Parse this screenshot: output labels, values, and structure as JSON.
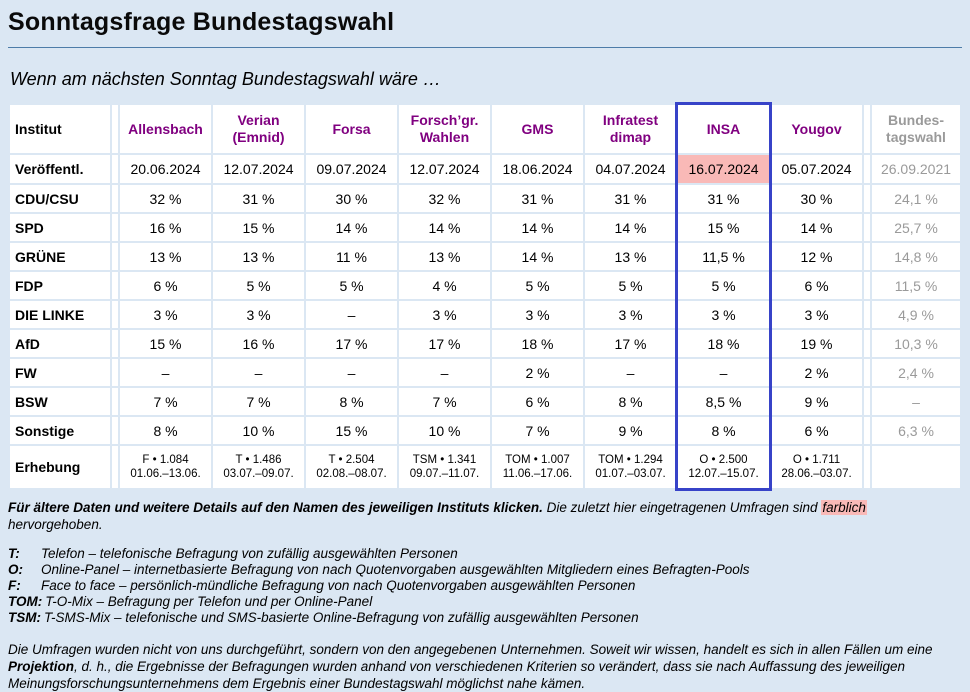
{
  "page": {
    "title": "Sonntagsfrage Bundestagswahl",
    "subtitle": "Wenn am nächsten Sonntag Bundestagswahl wäre …"
  },
  "colors": {
    "background": "#dbe7f3",
    "rule": "#4d7ca8",
    "institute_link": "#800080",
    "highlight_pink": "#f9b9b7",
    "insa_frame_blue": "#3743c8",
    "muted_gray": "#9a9a9a"
  },
  "table": {
    "corner_label": "Institut",
    "published_label": "Veröffentl.",
    "survey_label": "Erhebung",
    "parties": [
      "CDU/CSU",
      "SPD",
      "GRÜNE",
      "FDP",
      "DIE LINKE",
      "AfD",
      "FW",
      "BSW",
      "Sonstige"
    ],
    "columns": [
      {
        "name": "Allensbach",
        "link": true,
        "published": "20.06.2024",
        "values": [
          "32 %",
          "16 %",
          "13 %",
          "6 %",
          "3 %",
          "15 %",
          "–",
          "7 %",
          "8 %"
        ],
        "survey": "F • 1.084",
        "period": "01.06.–13.06."
      },
      {
        "name": "Verian\n(Emnid)",
        "link": true,
        "published": "12.07.2024",
        "values": [
          "31 %",
          "15 %",
          "13 %",
          "5 %",
          "3 %",
          "16 %",
          "–",
          "7 %",
          "10 %"
        ],
        "survey": "T • 1.486",
        "period": "03.07.–09.07."
      },
      {
        "name": "Forsa",
        "link": true,
        "published": "09.07.2024",
        "values": [
          "30 %",
          "14 %",
          "11 %",
          "5 %",
          "–",
          "17 %",
          "–",
          "8 %",
          "15 %"
        ],
        "survey": "T • 2.504",
        "period": "02.08.–08.07."
      },
      {
        "name": "Forsch’gr.\nWahlen",
        "link": true,
        "published": "12.07.2024",
        "values": [
          "32 %",
          "14 %",
          "13 %",
          "4 %",
          "3 %",
          "17 %",
          "–",
          "7 %",
          "10 %"
        ],
        "survey": "TSM • 1.341",
        "period": "09.07.–11.07."
      },
      {
        "name": "GMS",
        "link": true,
        "published": "18.06.2024",
        "values": [
          "31 %",
          "14 %",
          "14 %",
          "5 %",
          "3 %",
          "18 %",
          "2 %",
          "6 %",
          "7 %"
        ],
        "survey": "TOM • 1.007",
        "period": "11.06.–17.06."
      },
      {
        "name": "Infratest\ndimap",
        "link": true,
        "published": "04.07.2024",
        "values": [
          "31 %",
          "14 %",
          "13 %",
          "5 %",
          "3 %",
          "17 %",
          "–",
          "8 %",
          "9 %"
        ],
        "survey": "TOM • 1.294",
        "period": "01.07.–03.07."
      },
      {
        "name": "INSA",
        "link": true,
        "framed": true,
        "published": "16.07.2024",
        "published_highlight": true,
        "values": [
          "31 %",
          "15 %",
          "11,5 %",
          "5 %",
          "3 %",
          "18 %",
          "–",
          "8,5 %",
          "8 %"
        ],
        "survey": "O • 2.500",
        "period": "12.07.–15.07."
      },
      {
        "name": "Yougov",
        "link": true,
        "published": "05.07.2024",
        "values": [
          "30 %",
          "14 %",
          "12 %",
          "6 %",
          "3 %",
          "19 %",
          "2 %",
          "9 %",
          "6 %"
        ],
        "survey": "O • 1.711",
        "period": "28.06.–03.07."
      },
      {
        "name": "Bundes-\ntagswahl",
        "link": false,
        "muted": true,
        "election": true,
        "published": "26.09.2021",
        "values": [
          "24,1 %",
          "25,7 %",
          "14,8 %",
          "11,5 %",
          "4,9 %",
          "10,3 %",
          "2,4 %",
          "–",
          "6,3 %"
        ],
        "survey": "",
        "period": ""
      }
    ]
  },
  "notes": {
    "click_note": "Für ältere Daten und weitere Details auf den Namen des jeweiligen Instituts klicken.",
    "recent_note_a": " Die zuletzt hier eingetragenen Umfragen sind ",
    "highlight_word": "farblich",
    "recent_note_b": " hervorgehoben.",
    "legend": [
      {
        "label": "T:",
        "text": "Telefon – telefonische Befragung von zufällig ausgewählten Personen"
      },
      {
        "label": "O:",
        "text": "Online-Panel – internetbasierte Befragung von nach Quotenvorgaben ausgewählten Mitgliedern eines Befragten-Pools"
      },
      {
        "label": "F:",
        "text": "Face to face – persönlich-mündliche Befragung von nach Quotenvorgaben ausgewählten Personen"
      },
      {
        "label": "TOM:",
        "text": "T-O-Mix – Befragung per Telefon und per Online-Panel"
      },
      {
        "label": "TSM:",
        "text": "T-SMS-Mix – telefonische und SMS-basierte Online-Befragung von zufällig ausgewählten Personen"
      }
    ],
    "disclaimer_part1": "Die Umfragen wurden nicht von uns durchgeführt, sondern von den angegebenen Unternehmen. Soweit wir wissen, handelt es sich in allen Fällen um eine ",
    "disclaimer_bold": "Projektion",
    "disclaimer_part2": ", d. h., die Ergebnisse der Befragungen wurden anhand von verschiedenen Kriterien so verändert, dass sie nach Auffassung des jeweiligen Meinungsforschungsunternehmens dem Ergebnis einer Bundestagswahl möglichst nahe kämen."
  }
}
